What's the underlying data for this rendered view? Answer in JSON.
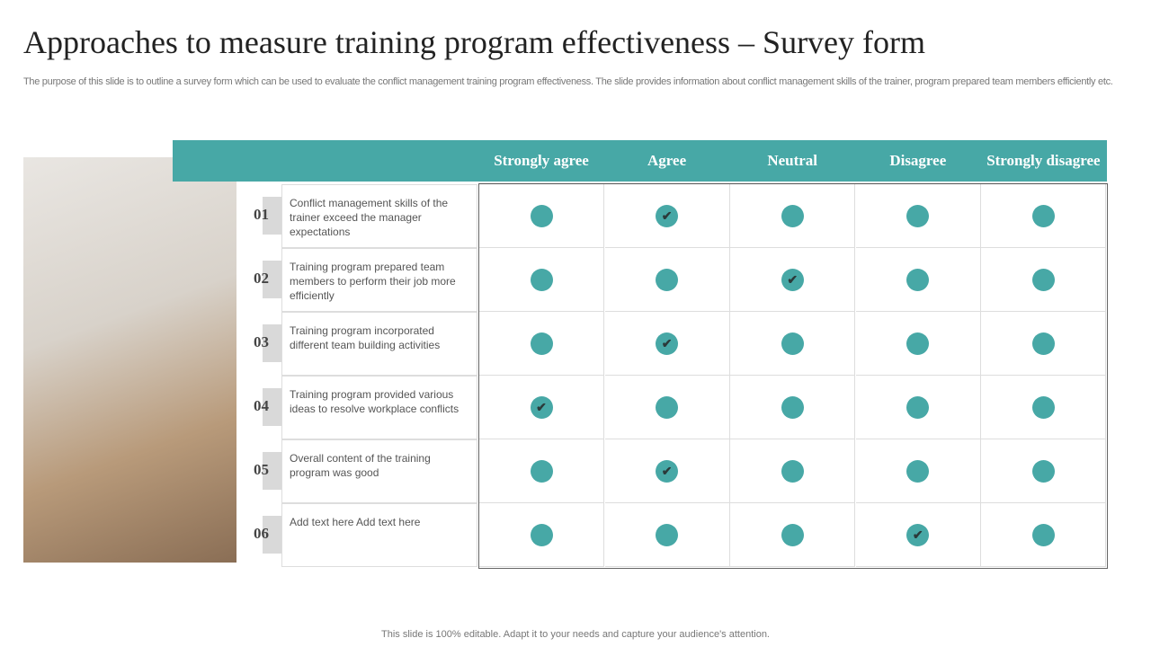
{
  "title": "Approaches to measure training program effectiveness – Survey form",
  "description": "The purpose of this slide is to outline a survey form which can be used to evaluate the conflict management training program effectiveness. The slide provides information about conflict management skills of the trainer, program prepared team members efficiently etc.",
  "columns": [
    "Strongly agree",
    "Agree",
    "Neutral",
    "Disagree",
    "Strongly disagree"
  ],
  "rows": [
    {
      "num": "01",
      "text": "Conflict management skills of the trainer exceed the manager expectations",
      "selected": 1
    },
    {
      "num": "02",
      "text": "Training program prepared team members to perform their job more efficiently",
      "selected": 2
    },
    {
      "num": "03",
      "text": "Training program incorporated different team building activities",
      "selected": 1
    },
    {
      "num": "04",
      "text": "Training program provided various ideas to resolve workplace conflicts",
      "selected": 0
    },
    {
      "num": "05",
      "text": "Overall content of the training program was good",
      "selected": 1
    },
    {
      "num": "06",
      "text": "Add text here Add text here",
      "selected": 3
    }
  ],
  "accent": "#47a8a6",
  "footer": "This slide is 100% editable. Adapt it to your needs and capture your audience's attention."
}
